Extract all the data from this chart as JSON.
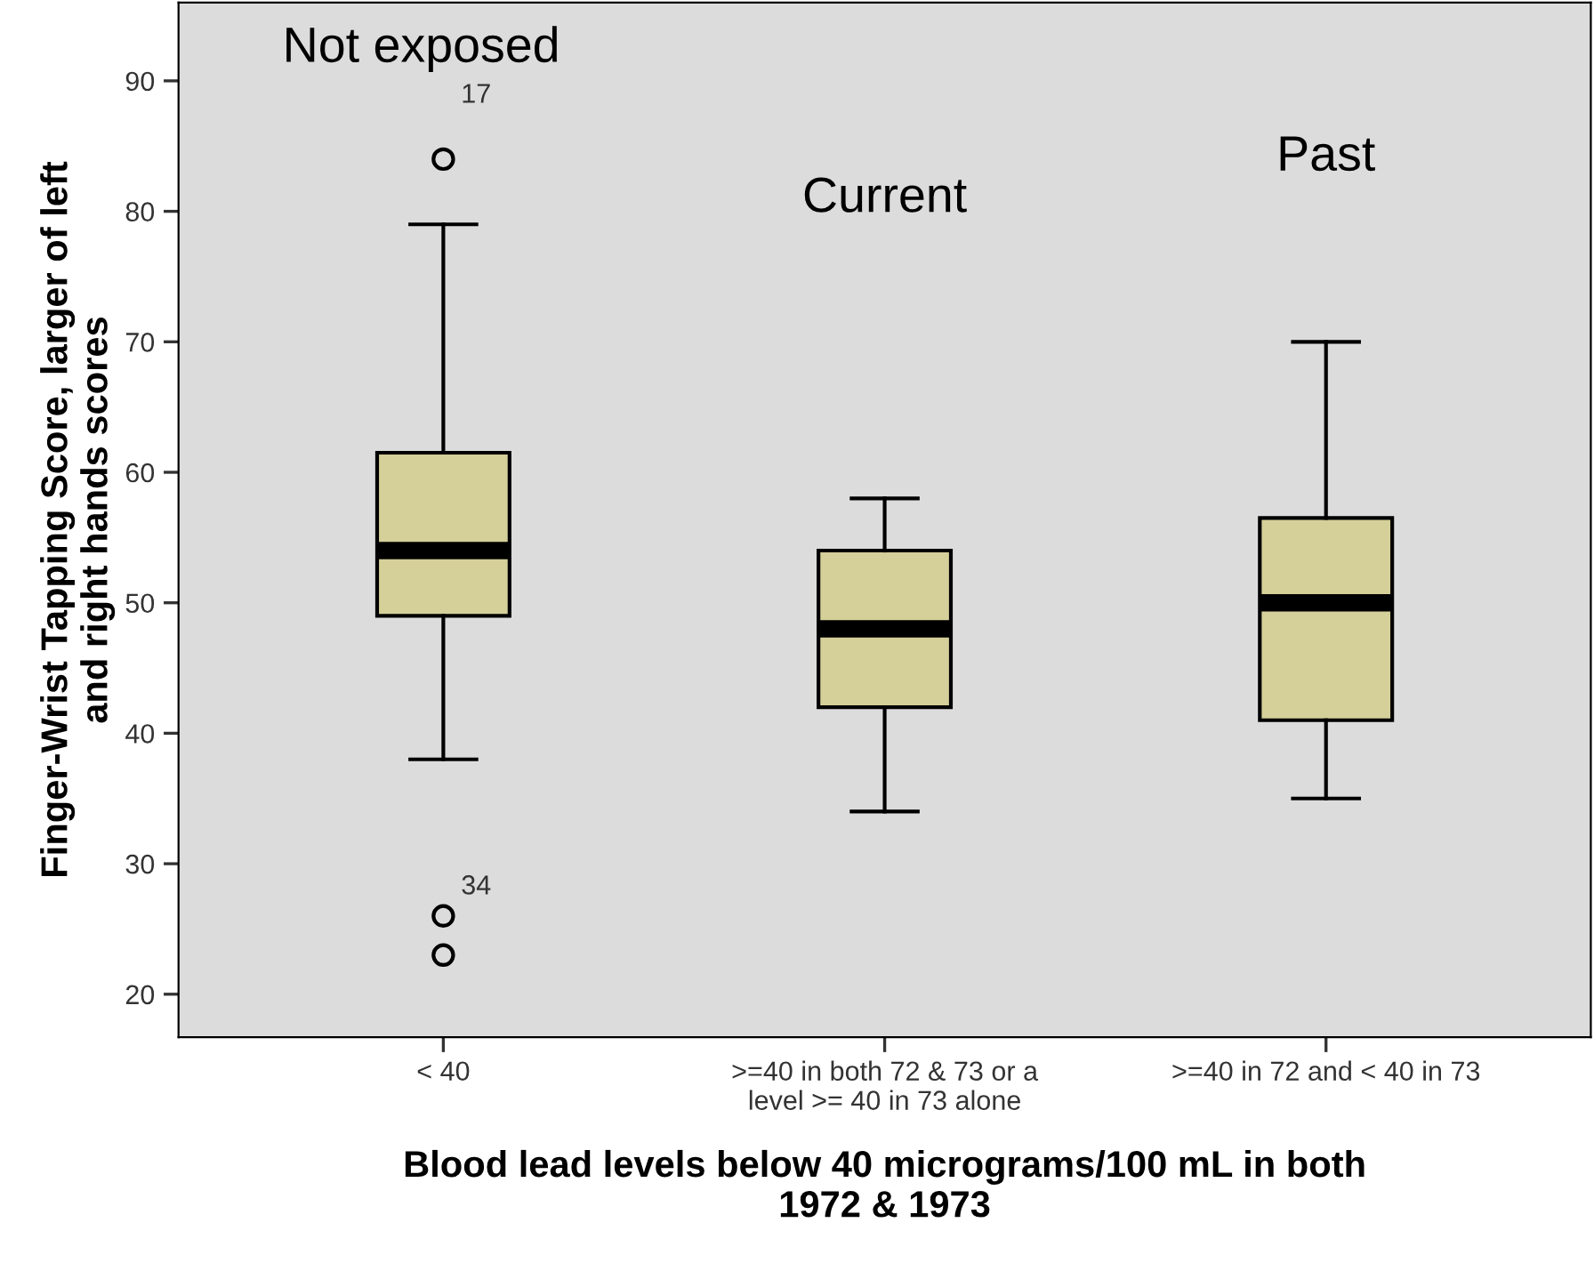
{
  "chart_data": {
    "type": "box",
    "xlabel": "Blood lead levels below 40 micrograms/100 mL in both\n1972 & 1973",
    "ylabel": "Finger-Wrist Tapping Score, larger of left\nand right hands scores",
    "categories": [
      "< 40",
      ">=40 in both 72 & 73 or a\nlevel >= 40 in 73 alone",
      ">=40 in 72 and < 40 in 73"
    ],
    "boxes": [
      {
        "low": 38,
        "q1": 49,
        "median": 54,
        "q3": 61.5,
        "high": 79,
        "outliers": [
          84,
          26,
          23
        ]
      },
      {
        "low": 34,
        "q1": 42,
        "median": 48,
        "q3": 54,
        "high": 58
      },
      {
        "low": 35,
        "q1": 41,
        "median": 50,
        "q3": 56.5,
        "high": 70
      }
    ],
    "color": "#d5cf99",
    "ylim": [
      16.7,
      96
    ],
    "yticks": [
      20,
      30,
      40,
      50,
      60,
      70,
      80,
      90
    ],
    "grid": false,
    "legend": false,
    "annotations": [
      "Not exposed",
      "Current",
      "Past",
      "17",
      "34"
    ]
  }
}
